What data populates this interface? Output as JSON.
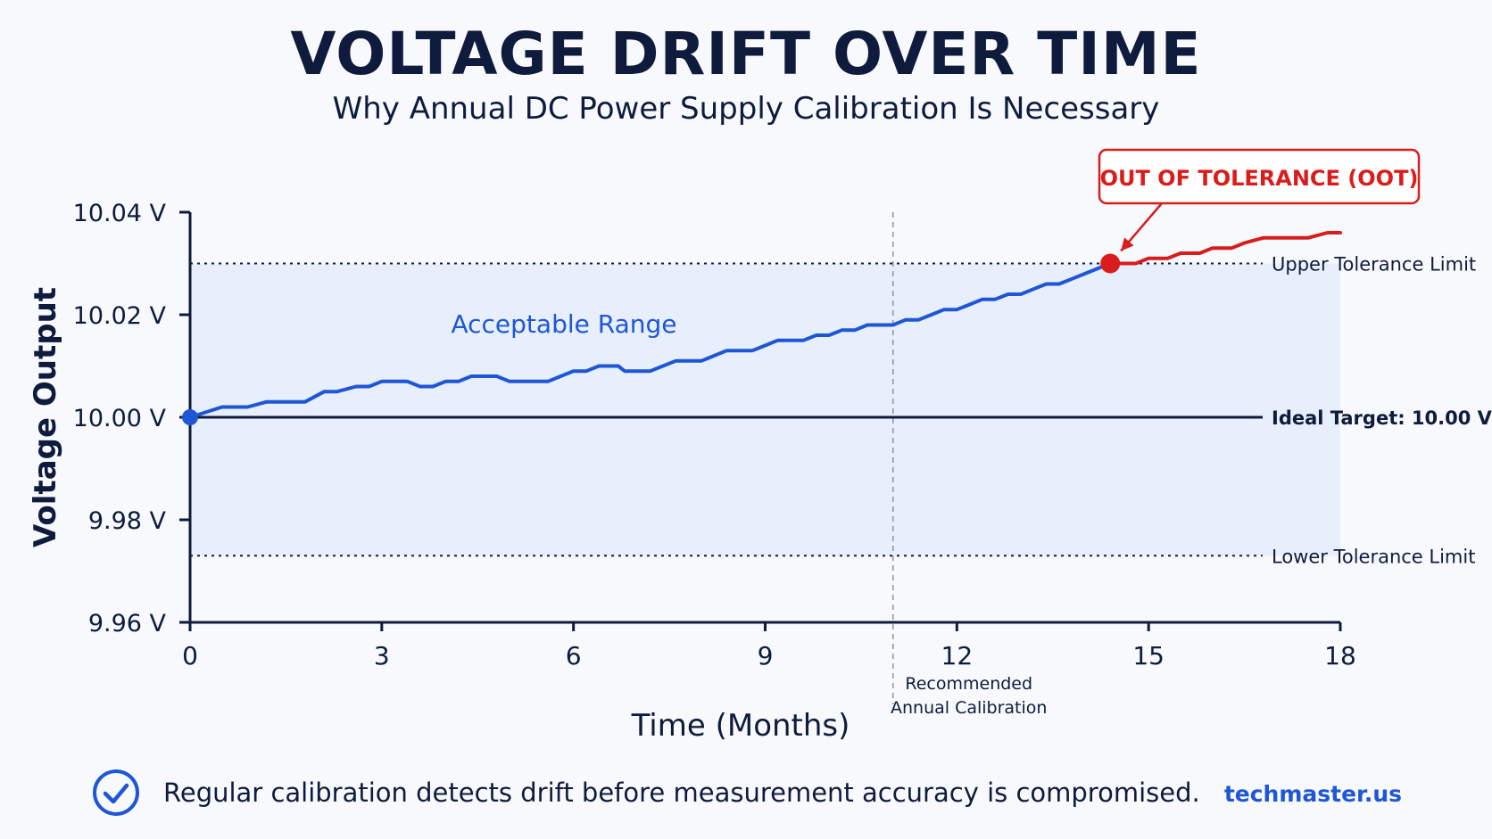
{
  "header": {
    "title": "VOLTAGE DRIFT OVER TIME",
    "subtitle": "Why Annual DC Power Supply Calibration Is Necessary"
  },
  "chart_data": {
    "type": "line",
    "title": "VOLTAGE DRIFT OVER TIME",
    "subtitle": "Why Annual DC Power Supply Calibration Is Necessary",
    "xlabel": "Time (Months)",
    "ylabel": "Voltage Output",
    "xlim": [
      0,
      18
    ],
    "ylim": [
      9.96,
      10.04
    ],
    "x_ticks": [
      0,
      3,
      6,
      9,
      12,
      15,
      18
    ],
    "y_ticks": [
      {
        "value": 9.96,
        "label": "9.96 V"
      },
      {
        "value": 9.98,
        "label": "9.98 V"
      },
      {
        "value": 10.0,
        "label": "10.00 V"
      },
      {
        "value": 10.02,
        "label": "10.02 V"
      },
      {
        "value": 10.04,
        "label": "10.04 V"
      }
    ],
    "grid": false,
    "colors": {
      "in_tolerance": "#1f56d6",
      "out_of_tolerance": "#d91c1c",
      "band": "#e6effb",
      "axis": "#0f1b3d"
    },
    "series": [
      {
        "status": "in-tolerance",
        "x": [
          0,
          0.5,
          0.9,
          1.2,
          1.5,
          1.8,
          2.1,
          2.3,
          2.6,
          2.8,
          3.0,
          3.2,
          3.4,
          3.6,
          3.8,
          4.0,
          4.2,
          4.4,
          4.6,
          4.8,
          5.0,
          5.2,
          5.4,
          5.6,
          5.8,
          6.0,
          6.2,
          6.4,
          6.6,
          6.7,
          6.8,
          7.0,
          7.2,
          7.4,
          7.6,
          7.8,
          8.0,
          8.2,
          8.4,
          8.6,
          8.8,
          9.0,
          9.2,
          9.4,
          9.6,
          9.8,
          10.0,
          10.2,
          10.4,
          10.6,
          10.8,
          11.0,
          11.2,
          11.4,
          11.6,
          11.8,
          12.0,
          12.2,
          12.4,
          12.6,
          12.8,
          13.0,
          13.2,
          13.4,
          13.6,
          13.8,
          14.0,
          14.4
        ],
        "y": [
          10.0,
          10.002,
          10.002,
          10.003,
          10.003,
          10.003,
          10.005,
          10.005,
          10.006,
          10.006,
          10.007,
          10.007,
          10.007,
          10.006,
          10.006,
          10.007,
          10.007,
          10.008,
          10.008,
          10.008,
          10.007,
          10.007,
          10.007,
          10.007,
          10.008,
          10.009,
          10.009,
          10.01,
          10.01,
          10.01,
          10.009,
          10.009,
          10.009,
          10.01,
          10.011,
          10.011,
          10.011,
          10.012,
          10.013,
          10.013,
          10.013,
          10.014,
          10.015,
          10.015,
          10.015,
          10.016,
          10.016,
          10.017,
          10.017,
          10.018,
          10.018,
          10.018,
          10.019,
          10.019,
          10.02,
          10.021,
          10.021,
          10.022,
          10.023,
          10.023,
          10.024,
          10.024,
          10.025,
          10.026,
          10.026,
          10.027,
          10.028,
          10.03
        ]
      },
      {
        "status": "out-of-tolerance",
        "x": [
          14.4,
          14.8,
          15.0,
          15.3,
          15.5,
          15.8,
          16.0,
          16.3,
          16.5,
          16.8,
          17.0,
          17.3,
          17.5,
          17.8,
          18.0
        ],
        "y": [
          10.03,
          10.03,
          10.031,
          10.031,
          10.032,
          10.032,
          10.033,
          10.033,
          10.034,
          10.035,
          10.035,
          10.035,
          10.035,
          10.036,
          10.036
        ]
      }
    ],
    "reference_lines": [
      {
        "label": "Upper Tolerance Limit",
        "y": 10.03,
        "style": "dotted"
      },
      {
        "label": "Ideal Target: 10.00 V",
        "y": 10.0,
        "style": "solid"
      },
      {
        "label": "Lower Tolerance Limit",
        "y": 9.973,
        "style": "dotted"
      }
    ],
    "band": {
      "label": "Acceptable Range",
      "y": [
        9.973,
        10.03
      ]
    },
    "vertical_marker": {
      "x": 11,
      "label": [
        "Recommended",
        "Annual Calibration"
      ]
    },
    "points": [
      {
        "x": 0,
        "y": 10.0,
        "status": "in-tolerance"
      },
      {
        "x": 14.4,
        "y": 10.03,
        "status": "out-of-tolerance"
      }
    ],
    "annotations": [
      {
        "text": "OUT OF TOLERANCE (OOT)",
        "target_x": 14.4,
        "target_y": 10.03
      }
    ]
  },
  "footer": {
    "message": "Regular calibration detects drift before measurement accuracy is compromised.",
    "brand": "techmaster.us",
    "icon": "check-circle-icon"
  }
}
